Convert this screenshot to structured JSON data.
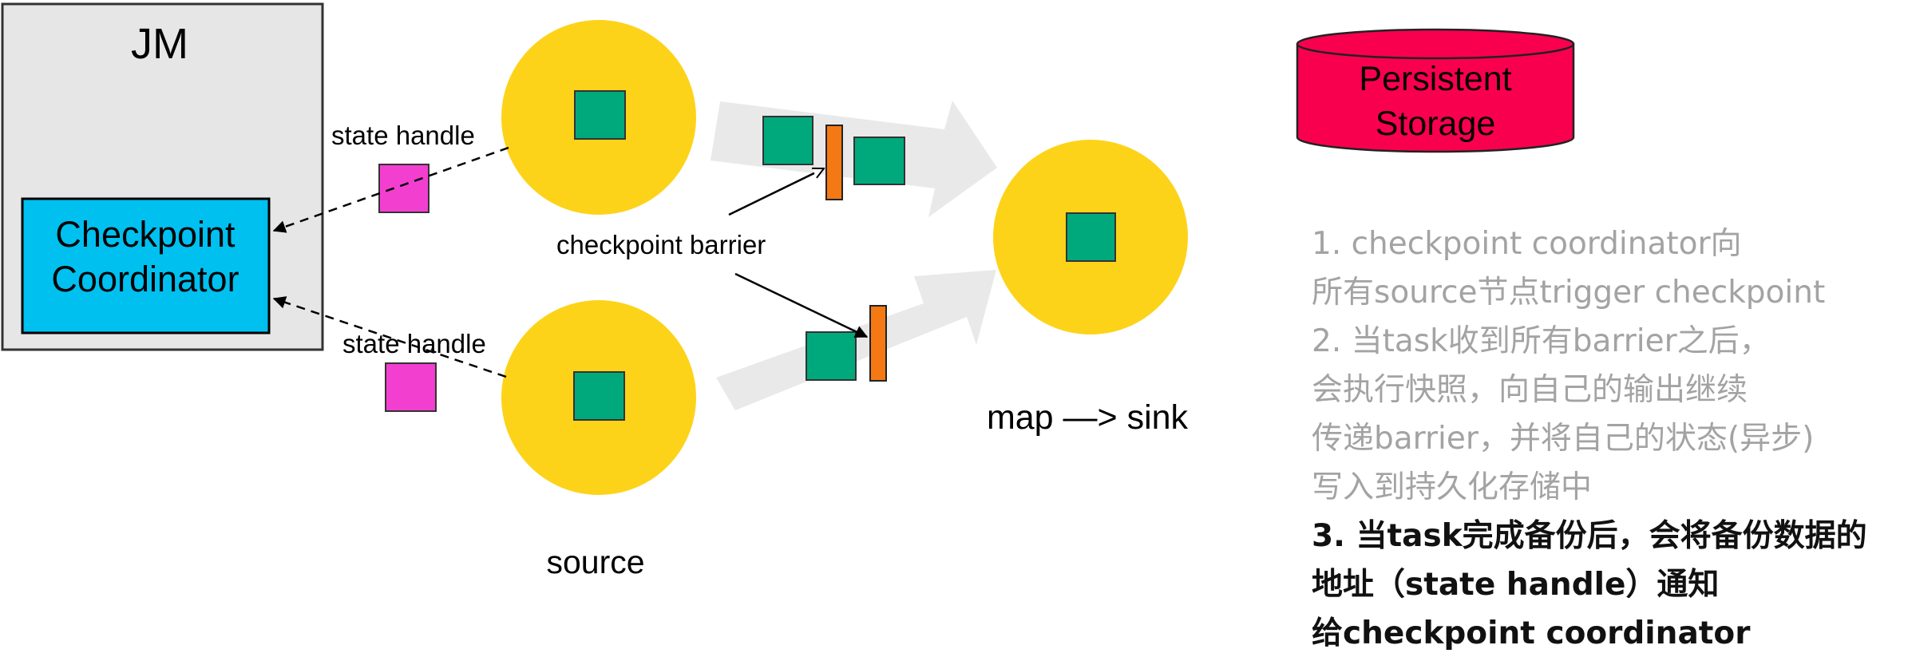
{
  "jm": {
    "title": "JM",
    "coordinator_lines": [
      "Checkpoint",
      "Coordinator"
    ]
  },
  "labels": {
    "state_handle_top": "state handle",
    "state_handle_bottom": "state handle",
    "checkpoint_barrier": "checkpoint barrier",
    "source": "source",
    "map_sink": "map —> sink"
  },
  "storage": {
    "lines": [
      "Persistent",
      "Storage"
    ]
  },
  "notes": {
    "step1": [
      "1. checkpoint coordinator向",
      "所有source节点trigger checkpoint"
    ],
    "step2": [
      "2. 当task收到所有barrier之后，",
      "会执行快照，向自己的输出继续",
      "传递barrier，并将自己的状态(异步)",
      "写入到持久化存储中"
    ],
    "step3": [
      "3. 当task完成备份后，会将备份数据的",
      "地址（state handle）通知",
      "给checkpoint coordinator"
    ]
  },
  "colors": {
    "jm_box": "#e6e6e6",
    "coordinator": "#00c0f0",
    "operator": "#fdd31a",
    "record": "#00a97c",
    "state_handle": "#f33fd0",
    "barrier": "#f47814",
    "storage": "#f9004f",
    "flow_arrow": "#e9e9e9",
    "muted_text": "#a3a3a3"
  }
}
